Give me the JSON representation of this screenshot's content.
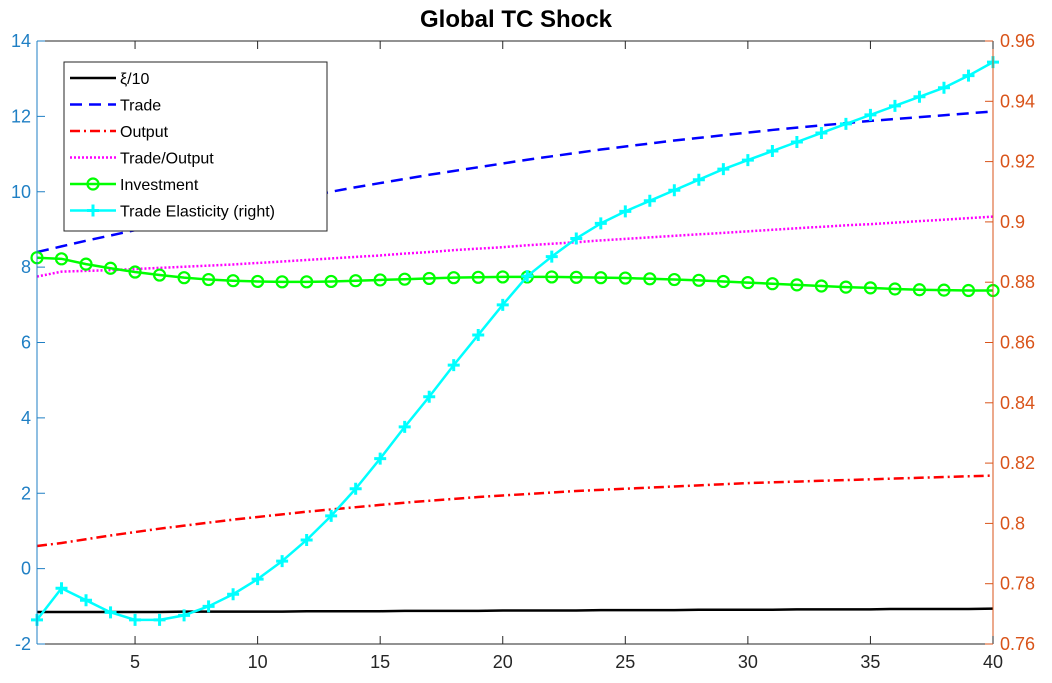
{
  "chart_data": {
    "type": "line",
    "title": "Global TC Shock",
    "xlabel": "",
    "ylabel": "",
    "xlim": [
      1,
      40
    ],
    "ylim_left": [
      -2,
      14
    ],
    "ylim_right": [
      0.76,
      0.96
    ],
    "x_ticks": [
      5,
      10,
      15,
      20,
      25,
      30,
      35,
      40
    ],
    "y_ticks_left": [
      -2,
      0,
      2,
      4,
      6,
      8,
      10,
      12,
      14
    ],
    "y_ticks_right": [
      "0.76",
      "0.78",
      "0.8",
      "0.82",
      "0.84",
      "0.86",
      "0.88",
      "0.9",
      "0.92",
      "0.94",
      "0.96"
    ],
    "grid": false,
    "legend_position": "top-left",
    "colors": {
      "left_axis": "#1f7fc4",
      "right_axis": "#d95319",
      "xi": "#000000",
      "trade": "#0000ff",
      "output": "#ff0000",
      "trade_output": "#ff00ff",
      "investment": "#00ff00",
      "elasticity": "#00ffff"
    },
    "x": [
      1,
      2,
      3,
      4,
      5,
      6,
      7,
      8,
      9,
      10,
      11,
      12,
      13,
      14,
      15,
      16,
      17,
      18,
      19,
      20,
      21,
      22,
      23,
      24,
      25,
      26,
      27,
      28,
      29,
      30,
      31,
      32,
      33,
      34,
      35,
      36,
      37,
      38,
      39,
      40
    ],
    "series": [
      {
        "name": "ξ/10",
        "axis": "left",
        "style": "solid",
        "values": [
          -1.15,
          -1.15,
          -1.15,
          -1.15,
          -1.15,
          -1.15,
          -1.14,
          -1.14,
          -1.14,
          -1.14,
          -1.14,
          -1.13,
          -1.13,
          -1.13,
          -1.13,
          -1.12,
          -1.12,
          -1.12,
          -1.12,
          -1.11,
          -1.11,
          -1.11,
          -1.11,
          -1.1,
          -1.1,
          -1.1,
          -1.1,
          -1.09,
          -1.09,
          -1.09,
          -1.09,
          -1.08,
          -1.08,
          -1.08,
          -1.08,
          -1.07,
          -1.07,
          -1.07,
          -1.07,
          -1.06
        ]
      },
      {
        "name": "Trade",
        "axis": "left",
        "style": "dashed",
        "values": [
          8.4,
          8.55,
          8.7,
          8.84,
          8.98,
          9.12,
          9.25,
          9.38,
          9.51,
          9.64,
          9.76,
          9.88,
          10.0,
          10.12,
          10.23,
          10.34,
          10.45,
          10.55,
          10.65,
          10.75,
          10.85,
          10.94,
          11.03,
          11.12,
          11.2,
          11.28,
          11.36,
          11.43,
          11.5,
          11.57,
          11.64,
          11.7,
          11.76,
          11.82,
          11.88,
          11.93,
          11.98,
          12.03,
          12.08,
          12.13
        ]
      },
      {
        "name": "Output",
        "axis": "left",
        "style": "dashdot",
        "values": [
          0.6,
          0.68,
          0.78,
          0.88,
          0.97,
          1.06,
          1.14,
          1.22,
          1.3,
          1.37,
          1.44,
          1.51,
          1.57,
          1.63,
          1.69,
          1.75,
          1.8,
          1.85,
          1.9,
          1.94,
          1.98,
          2.02,
          2.06,
          2.09,
          2.12,
          2.15,
          2.18,
          2.21,
          2.24,
          2.27,
          2.29,
          2.31,
          2.33,
          2.35,
          2.37,
          2.39,
          2.41,
          2.43,
          2.45,
          2.47
        ]
      },
      {
        "name": "Trade/Output",
        "axis": "left",
        "style": "dotted",
        "values": [
          7.75,
          7.88,
          7.9,
          7.92,
          7.95,
          7.98,
          8.01,
          8.04,
          8.07,
          8.11,
          8.15,
          8.19,
          8.23,
          8.27,
          8.31,
          8.36,
          8.4,
          8.45,
          8.49,
          8.53,
          8.58,
          8.62,
          8.66,
          8.71,
          8.75,
          8.79,
          8.83,
          8.87,
          8.91,
          8.95,
          8.99,
          9.03,
          9.07,
          9.11,
          9.14,
          9.18,
          9.22,
          9.26,
          9.3,
          9.34
        ]
      },
      {
        "name": "Investment",
        "axis": "left",
        "style": "solid-circle",
        "values": [
          8.25,
          8.22,
          8.08,
          7.97,
          7.87,
          7.79,
          7.72,
          7.67,
          7.64,
          7.62,
          7.61,
          7.61,
          7.62,
          7.64,
          7.66,
          7.68,
          7.7,
          7.72,
          7.73,
          7.74,
          7.74,
          7.74,
          7.73,
          7.72,
          7.71,
          7.69,
          7.67,
          7.65,
          7.62,
          7.59,
          7.56,
          7.53,
          7.5,
          7.47,
          7.45,
          7.42,
          7.4,
          7.39,
          7.38,
          7.38
        ]
      },
      {
        "name": "Trade Elasticity (right)",
        "axis": "right",
        "style": "solid-plus",
        "values": [
          0.768,
          0.7785,
          0.7745,
          0.7705,
          0.768,
          0.768,
          0.7695,
          0.7725,
          0.7765,
          0.7815,
          0.7875,
          0.7945,
          0.8025,
          0.8115,
          0.8215,
          0.832,
          0.842,
          0.8525,
          0.8625,
          0.8725,
          0.882,
          0.8885,
          0.8945,
          0.8995,
          0.9035,
          0.907,
          0.9105,
          0.914,
          0.9175,
          0.9205,
          0.9235,
          0.9265,
          0.9295,
          0.9325,
          0.9355,
          0.9385,
          0.9415,
          0.9445,
          0.9485,
          0.953
        ]
      }
    ]
  }
}
